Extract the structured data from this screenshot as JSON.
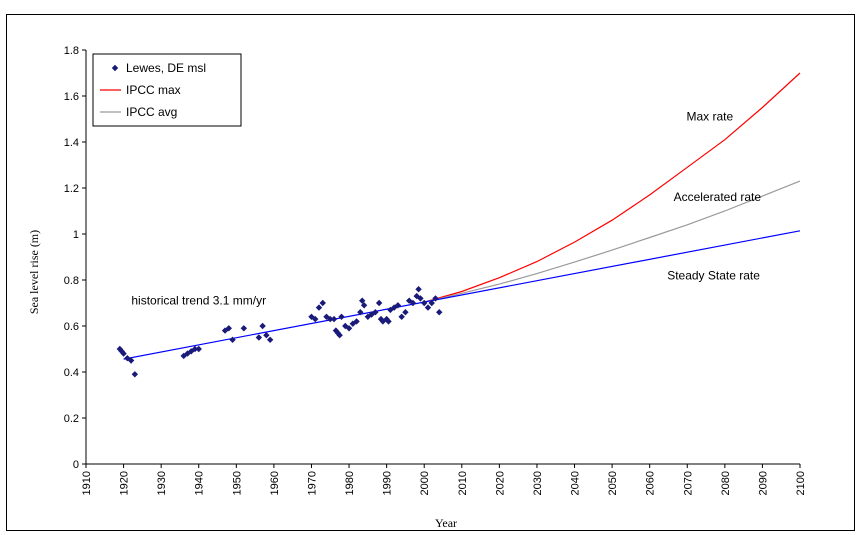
{
  "chart_data": {
    "type": "line",
    "title": "",
    "xlabel": "Year",
    "ylabel": "Sea level rise (m)",
    "xlim": [
      1910,
      2100
    ],
    "ylim": [
      0,
      1.8
    ],
    "x_ticks": [
      1910,
      1920,
      1930,
      1940,
      1950,
      1960,
      1970,
      1980,
      1990,
      2000,
      2010,
      2020,
      2030,
      2040,
      2050,
      2060,
      2070,
      2080,
      2090,
      2100
    ],
    "y_ticks": [
      0,
      0.2,
      0.4,
      0.6,
      0.8,
      1,
      1.2,
      1.4,
      1.6,
      1.8
    ],
    "y_tick_labels": [
      "0",
      "0.2",
      "0.4",
      "0.6",
      "0.8",
      "1",
      "1.2",
      "1.4",
      "1.6",
      "1.8"
    ],
    "grid": false,
    "legend_position": "top-left",
    "series": [
      {
        "name": "Lewes, DE msl",
        "kind": "scatter",
        "color": "#1a1a7a",
        "marker": "diamond",
        "points": [
          [
            1919,
            0.5
          ],
          [
            1919.5,
            0.49
          ],
          [
            1920,
            0.48
          ],
          [
            1921,
            0.46
          ],
          [
            1922,
            0.45
          ],
          [
            1923,
            0.39
          ],
          [
            1936,
            0.47
          ],
          [
            1937,
            0.48
          ],
          [
            1938,
            0.49
          ],
          [
            1939,
            0.5
          ],
          [
            1940,
            0.5
          ],
          [
            1947,
            0.58
          ],
          [
            1948,
            0.59
          ],
          [
            1949,
            0.54
          ],
          [
            1952,
            0.59
          ],
          [
            1956,
            0.55
          ],
          [
            1957,
            0.6
          ],
          [
            1958,
            0.56
          ],
          [
            1959,
            0.54
          ],
          [
            1970,
            0.64
          ],
          [
            1971,
            0.63
          ],
          [
            1972,
            0.68
          ],
          [
            1973,
            0.7
          ],
          [
            1974,
            0.64
          ],
          [
            1975,
            0.63
          ],
          [
            1976,
            0.63
          ],
          [
            1976.5,
            0.58
          ],
          [
            1977,
            0.57
          ],
          [
            1977.5,
            0.56
          ],
          [
            1978,
            0.64
          ],
          [
            1979,
            0.6
          ],
          [
            1980,
            0.59
          ],
          [
            1981,
            0.61
          ],
          [
            1982,
            0.62
          ],
          [
            1983,
            0.66
          ],
          [
            1983.5,
            0.71
          ],
          [
            1984,
            0.69
          ],
          [
            1985,
            0.64
          ],
          [
            1986,
            0.65
          ],
          [
            1987,
            0.66
          ],
          [
            1988,
            0.7
          ],
          [
            1988.5,
            0.63
          ],
          [
            1989,
            0.62
          ],
          [
            1990,
            0.63
          ],
          [
            1990.5,
            0.62
          ],
          [
            1991,
            0.67
          ],
          [
            1992,
            0.68
          ],
          [
            1993,
            0.69
          ],
          [
            1994,
            0.64
          ],
          [
            1995,
            0.66
          ],
          [
            1996,
            0.71
          ],
          [
            1997,
            0.7
          ],
          [
            1998,
            0.73
          ],
          [
            1998.5,
            0.76
          ],
          [
            1999,
            0.72
          ],
          [
            2000,
            0.7
          ],
          [
            2001,
            0.68
          ],
          [
            2002,
            0.7
          ],
          [
            2003,
            0.72
          ],
          [
            2004,
            0.66
          ]
        ]
      },
      {
        "name": "IPCC max",
        "kind": "line",
        "color": "#ff0000",
        "points": [
          [
            2000,
            0.704
          ],
          [
            2010,
            0.75
          ],
          [
            2020,
            0.81
          ],
          [
            2030,
            0.88
          ],
          [
            2040,
            0.965
          ],
          [
            2050,
            1.06
          ],
          [
            2060,
            1.17
          ],
          [
            2070,
            1.29
          ],
          [
            2080,
            1.41
          ],
          [
            2090,
            1.55
          ],
          [
            2100,
            1.7
          ]
        ]
      },
      {
        "name": "IPCC avg",
        "kind": "line",
        "color": "#9a9a9a",
        "points": [
          [
            2000,
            0.704
          ],
          [
            2010,
            0.742
          ],
          [
            2020,
            0.782
          ],
          [
            2030,
            0.828
          ],
          [
            2040,
            0.878
          ],
          [
            2050,
            0.93
          ],
          [
            2060,
            0.985
          ],
          [
            2070,
            1.04
          ],
          [
            2080,
            1.1
          ],
          [
            2090,
            1.165
          ],
          [
            2100,
            1.23
          ]
        ]
      },
      {
        "kind": "line",
        "color": "#0000ff",
        "points": [
          [
            1920,
            0.456
          ],
          [
            2100,
            1.014
          ]
        ]
      }
    ],
    "annotations": [
      {
        "text": "historical trend 3.1 mm/yr",
        "x": 1940,
        "y": 0.71
      },
      {
        "text": "Max rate",
        "x": 2076,
        "y": 1.51
      },
      {
        "text": "Accelerated rate",
        "x": 2078,
        "y": 1.16
      },
      {
        "text": "Steady State rate",
        "x": 2077,
        "y": 0.82
      }
    ]
  }
}
